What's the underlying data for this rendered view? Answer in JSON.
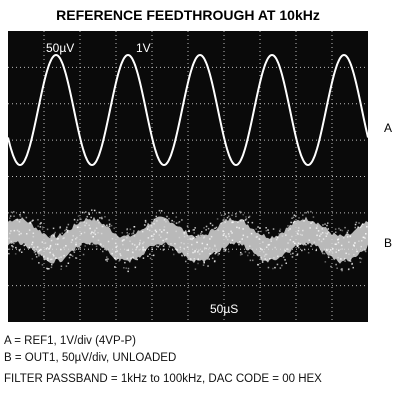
{
  "figure": {
    "title": "REFERENCE FEEDTHROUGH AT 10kHz",
    "screen_labels": {
      "ch_b_scale": "50µV",
      "ch_a_scale": "1V",
      "timebase": "50µS"
    },
    "trace_labels": {
      "a": "A",
      "b": "B"
    },
    "captions": [
      "A = REF1, 1V/div (4VP-P)",
      "B = OUT1, 50µV/div, UNLOADED",
      "FILTER PASSBAND = 1kHz to 100kHz, DAC CODE = 00 HEX"
    ]
  }
}
